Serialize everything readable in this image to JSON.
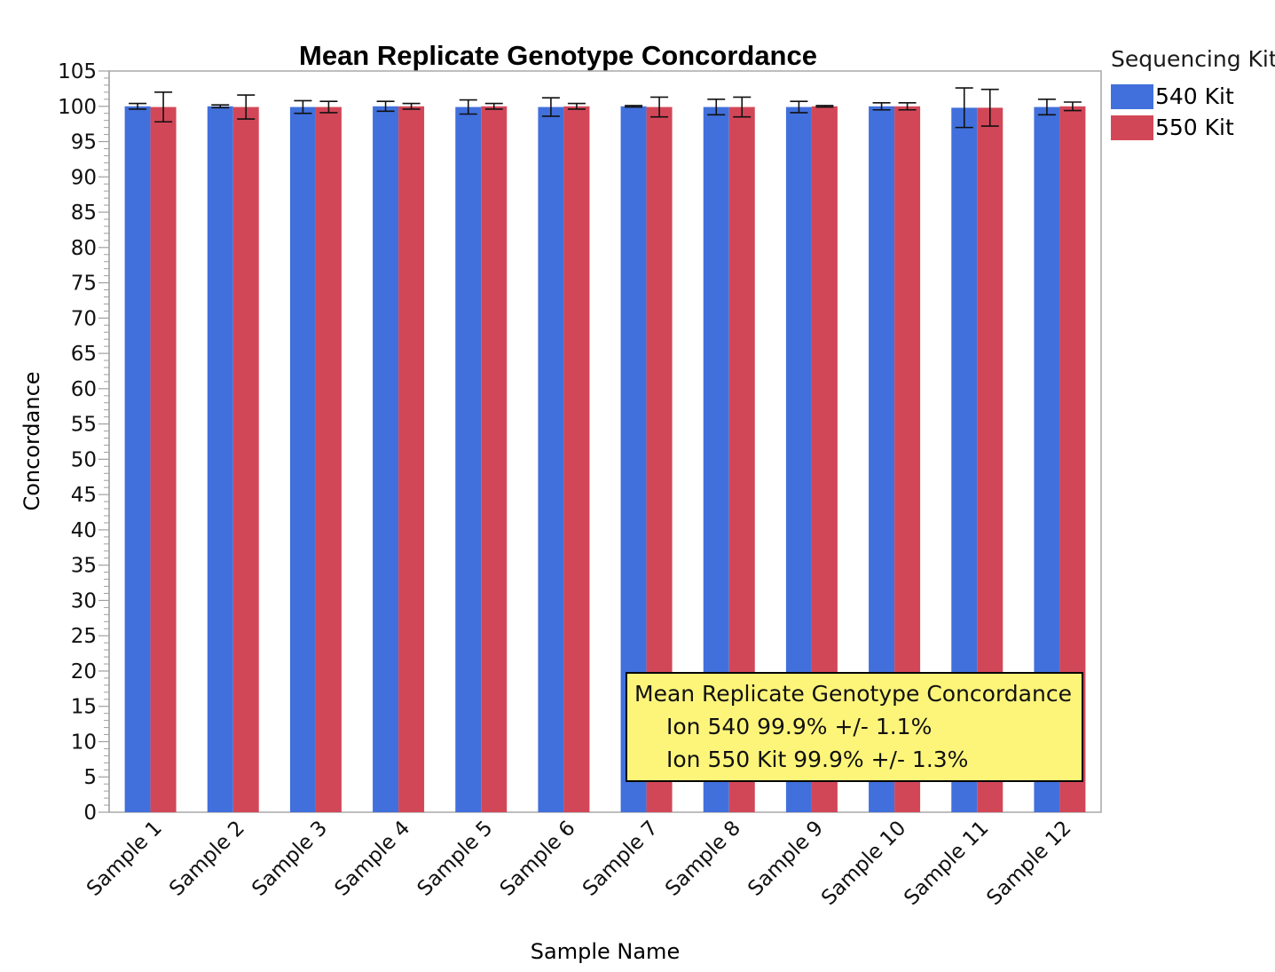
{
  "chart_data": {
    "type": "bar",
    "title": "Mean Replicate Genotype Concordance",
    "xlabel": "Sample Name",
    "ylabel": "Concordance",
    "ylim": [
      0,
      105
    ],
    "yticks": [
      0,
      5,
      10,
      15,
      20,
      25,
      30,
      35,
      40,
      45,
      50,
      55,
      60,
      65,
      70,
      75,
      80,
      85,
      90,
      95,
      100,
      105
    ],
    "categories": [
      "Sample 1",
      "Sample 2",
      "Sample 3",
      "Sample 4",
      "Sample 5",
      "Sample 6",
      "Sample 7",
      "Sample 8",
      "Sample 9",
      "Sample 10",
      "Sample 11",
      "Sample 12"
    ],
    "series": [
      {
        "name": "540 Kit",
        "color": "#4170dc",
        "values": [
          100,
          100,
          99.9,
          100,
          99.9,
          99.9,
          100,
          99.9,
          99.9,
          100,
          99.8,
          99.9
        ],
        "errors": [
          0.4,
          0.2,
          0.9,
          0.7,
          1.0,
          1.3,
          0.1,
          1.1,
          0.8,
          0.5,
          2.8,
          1.1
        ]
      },
      {
        "name": "550 Kit",
        "color": "#d24758",
        "values": [
          99.9,
          99.9,
          99.9,
          100,
          100,
          100,
          99.9,
          99.9,
          100,
          100,
          99.8,
          100
        ],
        "errors": [
          2.1,
          1.7,
          0.8,
          0.4,
          0.4,
          0.4,
          1.4,
          1.4,
          0.1,
          0.5,
          2.6,
          0.6
        ]
      }
    ],
    "legend": {
      "title": "Sequencing Kit",
      "position": "top-right-outside"
    },
    "grid": false
  },
  "tooltip": {
    "title": "Mean Replicate Genotype Concordance",
    "lines": [
      "Ion 540 99.9% +/- 1.1%",
      "Ion 550 Kit 99.9% +/- 1.3%"
    ],
    "background": "#fdf57a"
  }
}
